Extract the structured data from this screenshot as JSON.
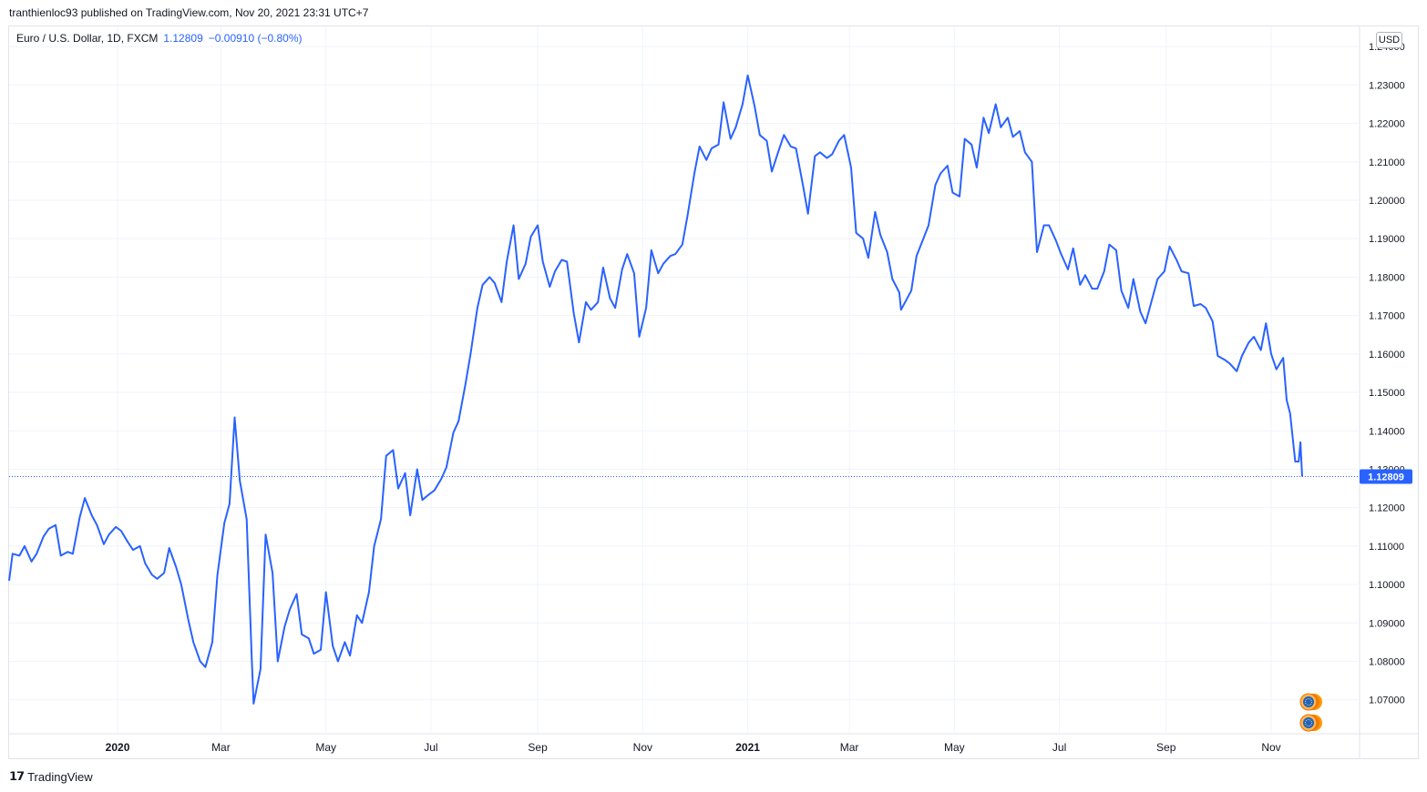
{
  "header": {
    "publisher_text": "tranthienloc93 published on TradingView.com, Nov 20, 2021 23:31 UTC+7"
  },
  "legend": {
    "symbol": "Euro / U.S. Dollar, 1D, FXCM",
    "last": "1.12809",
    "change": "−0.00910 (−0.80%)"
  },
  "currency_label": "USD",
  "footer": {
    "logo_icon": "tradingview-logo-icon",
    "brand": "TradingView"
  },
  "colors": {
    "line": "#2962ff",
    "grid": "#f0f3fa",
    "axis_text": "#131722",
    "price_tag": "#2962ff"
  },
  "chart_data": {
    "type": "line",
    "title": "Euro / U.S. Dollar, 1D, FXCM",
    "xlabel": "",
    "ylabel": "",
    "ylim": [
      1.0605,
      1.2445
    ],
    "x_tick_labels": [
      {
        "label": "2020",
        "date": "2020-01-01",
        "bold": true
      },
      {
        "label": "Mar",
        "date": "2020-03-01",
        "bold": false
      },
      {
        "label": "May",
        "date": "2020-05-01",
        "bold": false
      },
      {
        "label": "Jul",
        "date": "2020-07-01",
        "bold": false
      },
      {
        "label": "Sep",
        "date": "2020-09-01",
        "bold": false
      },
      {
        "label": "Nov",
        "date": "2020-11-01",
        "bold": false
      },
      {
        "label": "2021",
        "date": "2021-01-01",
        "bold": true
      },
      {
        "label": "Mar",
        "date": "2021-03-01",
        "bold": false
      },
      {
        "label": "May",
        "date": "2021-05-01",
        "bold": false
      },
      {
        "label": "Jul",
        "date": "2021-07-01",
        "bold": false
      },
      {
        "label": "Sep",
        "date": "2021-09-01",
        "bold": false
      },
      {
        "label": "Nov",
        "date": "2021-11-01",
        "bold": false
      }
    ],
    "y_tick_labels": [
      "1.07000",
      "1.08000",
      "1.09000",
      "1.10000",
      "1.11000",
      "1.12000",
      "1.13000",
      "1.14000",
      "1.15000",
      "1.16000",
      "1.17000",
      "1.18000",
      "1.19000",
      "1.20000",
      "1.21000",
      "1.22000",
      "1.23000",
      "1.24000"
    ],
    "last_price_label": "1.12809",
    "last_price": 1.12809,
    "grid": true,
    "series": [
      {
        "values": [
          [
            "2019-10-30",
            1.101
          ],
          [
            "2019-11-01",
            1.108
          ],
          [
            "2019-11-05",
            1.1075
          ],
          [
            "2019-11-08",
            1.11
          ],
          [
            "2019-11-12",
            1.106
          ],
          [
            "2019-11-15",
            1.108
          ],
          [
            "2019-11-19",
            1.1125
          ],
          [
            "2019-11-22",
            1.1145
          ],
          [
            "2019-11-26",
            1.1155
          ],
          [
            "2019-11-29",
            1.1075
          ],
          [
            "2019-12-03",
            1.1085
          ],
          [
            "2019-12-06",
            1.108
          ],
          [
            "2019-12-10",
            1.1175
          ],
          [
            "2019-12-13",
            1.1225
          ],
          [
            "2019-12-17",
            1.118
          ],
          [
            "2019-12-20",
            1.1155
          ],
          [
            "2019-12-24",
            1.1105
          ],
          [
            "2019-12-27",
            1.113
          ],
          [
            "2019-12-31",
            1.115
          ],
          [
            "2020-01-03",
            1.114
          ],
          [
            "2020-01-07",
            1.111
          ],
          [
            "2020-01-10",
            1.109
          ],
          [
            "2020-01-14",
            1.11
          ],
          [
            "2020-01-17",
            1.1055
          ],
          [
            "2020-01-21",
            1.1025
          ],
          [
            "2020-01-24",
            1.1015
          ],
          [
            "2020-01-28",
            1.103
          ],
          [
            "2020-01-31",
            1.1095
          ],
          [
            "2020-02-04",
            1.1045
          ],
          [
            "2020-02-07",
            1.1
          ],
          [
            "2020-02-11",
            1.091
          ],
          [
            "2020-02-14",
            1.085
          ],
          [
            "2020-02-18",
            1.08
          ],
          [
            "2020-02-21",
            1.0785
          ],
          [
            "2020-02-25",
            1.085
          ],
          [
            "2020-02-28",
            1.1025
          ],
          [
            "2020-03-03",
            1.116
          ],
          [
            "2020-03-06",
            1.121
          ],
          [
            "2020-03-09",
            1.1435
          ],
          [
            "2020-03-12",
            1.127
          ],
          [
            "2020-03-16",
            1.117
          ],
          [
            "2020-03-19",
            1.08
          ],
          [
            "2020-03-20",
            1.069
          ],
          [
            "2020-03-24",
            1.078
          ],
          [
            "2020-03-27",
            1.113
          ],
          [
            "2020-03-31",
            1.103
          ],
          [
            "2020-04-03",
            1.08
          ],
          [
            "2020-04-07",
            1.089
          ],
          [
            "2020-04-10",
            1.0935
          ],
          [
            "2020-04-14",
            1.0975
          ],
          [
            "2020-04-17",
            1.087
          ],
          [
            "2020-04-21",
            1.086
          ],
          [
            "2020-04-24",
            1.082
          ],
          [
            "2020-04-28",
            1.083
          ],
          [
            "2020-05-01",
            1.098
          ],
          [
            "2020-05-05",
            1.084
          ],
          [
            "2020-05-08",
            1.08
          ],
          [
            "2020-05-12",
            1.085
          ],
          [
            "2020-05-15",
            1.0815
          ],
          [
            "2020-05-19",
            1.092
          ],
          [
            "2020-05-22",
            1.09
          ],
          [
            "2020-05-26",
            1.098
          ],
          [
            "2020-05-29",
            1.11
          ],
          [
            "2020-06-02",
            1.117
          ],
          [
            "2020-06-05",
            1.1335
          ],
          [
            "2020-06-09",
            1.135
          ],
          [
            "2020-06-12",
            1.125
          ],
          [
            "2020-06-16",
            1.129
          ],
          [
            "2020-06-19",
            1.118
          ],
          [
            "2020-06-23",
            1.13
          ],
          [
            "2020-06-26",
            1.122
          ],
          [
            "2020-06-30",
            1.1235
          ],
          [
            "2020-07-03",
            1.1245
          ],
          [
            "2020-07-07",
            1.1275
          ],
          [
            "2020-07-10",
            1.1305
          ],
          [
            "2020-07-14",
            1.1395
          ],
          [
            "2020-07-17",
            1.1425
          ],
          [
            "2020-07-21",
            1.152
          ],
          [
            "2020-07-24",
            1.16
          ],
          [
            "2020-07-28",
            1.172
          ],
          [
            "2020-07-31",
            1.178
          ],
          [
            "2020-08-04",
            1.18
          ],
          [
            "2020-08-07",
            1.1785
          ],
          [
            "2020-08-11",
            1.1735
          ],
          [
            "2020-08-14",
            1.184
          ],
          [
            "2020-08-18",
            1.1935
          ],
          [
            "2020-08-21",
            1.1795
          ],
          [
            "2020-08-25",
            1.1835
          ],
          [
            "2020-08-28",
            1.1905
          ],
          [
            "2020-09-01",
            1.1935
          ],
          [
            "2020-09-04",
            1.184
          ],
          [
            "2020-09-08",
            1.1775
          ],
          [
            "2020-09-11",
            1.1815
          ],
          [
            "2020-09-15",
            1.1845
          ],
          [
            "2020-09-18",
            1.184
          ],
          [
            "2020-09-22",
            1.1705
          ],
          [
            "2020-09-25",
            1.163
          ],
          [
            "2020-09-29",
            1.1735
          ],
          [
            "2020-10-02",
            1.1715
          ],
          [
            "2020-10-06",
            1.1735
          ],
          [
            "2020-10-09",
            1.1825
          ],
          [
            "2020-10-13",
            1.1745
          ],
          [
            "2020-10-16",
            1.172
          ],
          [
            "2020-10-20",
            1.182
          ],
          [
            "2020-10-23",
            1.186
          ],
          [
            "2020-10-27",
            1.181
          ],
          [
            "2020-10-30",
            1.1645
          ],
          [
            "2020-11-03",
            1.172
          ],
          [
            "2020-11-06",
            1.187
          ],
          [
            "2020-11-10",
            1.181
          ],
          [
            "2020-11-13",
            1.1835
          ],
          [
            "2020-11-17",
            1.1855
          ],
          [
            "2020-11-20",
            1.186
          ],
          [
            "2020-11-24",
            1.1885
          ],
          [
            "2020-11-27",
            1.196
          ],
          [
            "2020-12-01",
            1.207
          ],
          [
            "2020-12-04",
            1.214
          ],
          [
            "2020-12-08",
            1.2105
          ],
          [
            "2020-12-11",
            1.2135
          ],
          [
            "2020-12-15",
            1.2145
          ],
          [
            "2020-12-18",
            1.2255
          ],
          [
            "2020-12-22",
            1.216
          ],
          [
            "2020-12-25",
            1.219
          ],
          [
            "2020-12-29",
            1.225
          ],
          [
            "2021-01-01",
            1.2325
          ],
          [
            "2021-01-05",
            1.2245
          ],
          [
            "2021-01-08",
            1.217
          ],
          [
            "2021-01-12",
            1.2155
          ],
          [
            "2021-01-15",
            1.2075
          ],
          [
            "2021-01-19",
            1.213
          ],
          [
            "2021-01-22",
            1.217
          ],
          [
            "2021-01-26",
            1.214
          ],
          [
            "2021-01-29",
            1.2135
          ],
          [
            "2021-02-02",
            1.204
          ],
          [
            "2021-02-05",
            1.1965
          ],
          [
            "2021-02-09",
            1.2115
          ],
          [
            "2021-02-12",
            1.2125
          ],
          [
            "2021-02-16",
            1.211
          ],
          [
            "2021-02-19",
            1.212
          ],
          [
            "2021-02-23",
            1.2155
          ],
          [
            "2021-02-26",
            1.217
          ],
          [
            "2021-03-02",
            1.2085
          ],
          [
            "2021-03-05",
            1.1915
          ],
          [
            "2021-03-09",
            1.19
          ],
          [
            "2021-03-12",
            1.185
          ],
          [
            "2021-03-16",
            1.197
          ],
          [
            "2021-03-19",
            1.191
          ],
          [
            "2021-03-23",
            1.1865
          ],
          [
            "2021-03-26",
            1.1795
          ],
          [
            "2021-03-30",
            1.176
          ],
          [
            "2021-03-31",
            1.1715
          ],
          [
            "2021-04-06",
            1.1765
          ],
          [
            "2021-04-09",
            1.1855
          ],
          [
            "2021-04-13",
            1.19
          ],
          [
            "2021-04-16",
            1.1935
          ],
          [
            "2021-04-20",
            1.204
          ],
          [
            "2021-04-23",
            1.207
          ],
          [
            "2021-04-27",
            1.209
          ],
          [
            "2021-04-30",
            1.202
          ],
          [
            "2021-05-04",
            1.201
          ],
          [
            "2021-05-07",
            1.216
          ],
          [
            "2021-05-11",
            1.2145
          ],
          [
            "2021-05-14",
            1.2085
          ],
          [
            "2021-05-18",
            1.2215
          ],
          [
            "2021-05-21",
            1.2175
          ],
          [
            "2021-05-25",
            1.225
          ],
          [
            "2021-05-28",
            1.219
          ],
          [
            "2021-06-01",
            1.2215
          ],
          [
            "2021-06-04",
            1.2165
          ],
          [
            "2021-06-08",
            1.218
          ],
          [
            "2021-06-11",
            1.2125
          ],
          [
            "2021-06-15",
            1.21
          ],
          [
            "2021-06-18",
            1.1865
          ],
          [
            "2021-06-22",
            1.1935
          ],
          [
            "2021-06-25",
            1.1935
          ],
          [
            "2021-06-29",
            1.1895
          ],
          [
            "2021-07-02",
            1.186
          ],
          [
            "2021-07-06",
            1.182
          ],
          [
            "2021-07-09",
            1.1875
          ],
          [
            "2021-07-13",
            1.178
          ],
          [
            "2021-07-16",
            1.1805
          ],
          [
            "2021-07-20",
            1.177
          ],
          [
            "2021-07-23",
            1.177
          ],
          [
            "2021-07-27",
            1.1815
          ],
          [
            "2021-07-30",
            1.1885
          ],
          [
            "2021-08-03",
            1.187
          ],
          [
            "2021-08-06",
            1.1765
          ],
          [
            "2021-08-10",
            1.172
          ],
          [
            "2021-08-13",
            1.1795
          ],
          [
            "2021-08-17",
            1.171
          ],
          [
            "2021-08-20",
            1.168
          ],
          [
            "2021-08-24",
            1.1745
          ],
          [
            "2021-08-27",
            1.1795
          ],
          [
            "2021-08-31",
            1.1815
          ],
          [
            "2021-09-03",
            1.188
          ],
          [
            "2021-09-07",
            1.1845
          ],
          [
            "2021-09-10",
            1.1815
          ],
          [
            "2021-09-14",
            1.181
          ],
          [
            "2021-09-17",
            1.1725
          ],
          [
            "2021-09-21",
            1.173
          ],
          [
            "2021-09-24",
            1.172
          ],
          [
            "2021-09-28",
            1.1685
          ],
          [
            "2021-10-01",
            1.1595
          ],
          [
            "2021-10-05",
            1.1585
          ],
          [
            "2021-10-08",
            1.1575
          ],
          [
            "2021-10-12",
            1.1555
          ],
          [
            "2021-10-15",
            1.1595
          ],
          [
            "2021-10-19",
            1.163
          ],
          [
            "2021-10-22",
            1.1645
          ],
          [
            "2021-10-26",
            1.161
          ],
          [
            "2021-10-29",
            1.168
          ],
          [
            "2021-11-01",
            1.16
          ],
          [
            "2021-11-04",
            1.156
          ],
          [
            "2021-11-08",
            1.159
          ],
          [
            "2021-11-10",
            1.148
          ],
          [
            "2021-11-12",
            1.1445
          ],
          [
            "2021-11-15",
            1.132
          ],
          [
            "2021-11-17",
            1.132
          ],
          [
            "2021-11-18",
            1.137
          ],
          [
            "2021-11-19",
            1.12809
          ]
        ]
      }
    ]
  }
}
